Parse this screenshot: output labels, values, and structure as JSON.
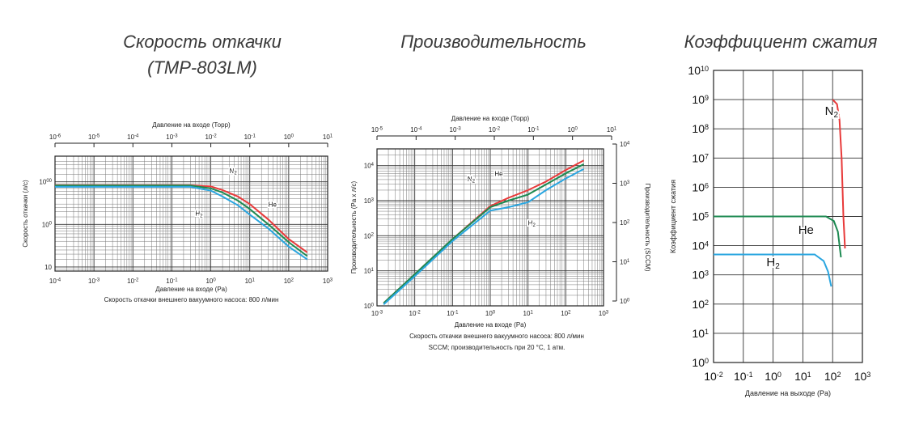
{
  "chart_data": [
    {
      "type": "line",
      "title_lines": [
        "Скорость откачки",
        "(TMP-803LM)"
      ],
      "xlabel": "Давление на входе (Pa)",
      "x2label": "Давление на входе (Торр)",
      "ylabel": "Скорость откачки (л/с)",
      "note": "Скорость откачки внешнего вакуумного насоса: 800 л/мин",
      "xscale": "log",
      "yscale": "log",
      "xlim": [
        0.0001,
        1000
      ],
      "ylim": [
        8,
        4000
      ],
      "x2lim": [
        1e-06,
        10
      ],
      "xticks": [
        "10-4",
        "10-3",
        "10-2",
        "10-1",
        "100",
        "101",
        "102",
        "103"
      ],
      "x2ticks": [
        "10-6",
        "10-5",
        "10-4",
        "10-3",
        "10-2",
        "10-1",
        "100",
        "101"
      ],
      "yticks": [
        {
          "v": 10,
          "t": "10"
        },
        {
          "v": 100,
          "t": "100"
        },
        {
          "v": 1000,
          "t": "1000"
        }
      ],
      "grid": true,
      "series": [
        {
          "name": "N2",
          "color": "#e83a3a",
          "x": [
            0.0001,
            0.3,
            1,
            2,
            5,
            10,
            30,
            100,
            300
          ],
          "y": [
            830,
            830,
            780,
            640,
            450,
            300,
            130,
            45,
            22
          ]
        },
        {
          "name": "He",
          "color": "#1d8a52",
          "x": [
            0.0001,
            0.3,
            1,
            2,
            5,
            10,
            30,
            100,
            300
          ],
          "y": [
            820,
            820,
            700,
            560,
            360,
            230,
            100,
            38,
            18
          ]
        },
        {
          "name": "H2",
          "color": "#2aa6e0",
          "x": [
            0.0001,
            0.3,
            1,
            2,
            5,
            10,
            30,
            100,
            300
          ],
          "y": [
            760,
            760,
            620,
            450,
            280,
            170,
            80,
            30,
            15
          ]
        }
      ],
      "labels": [
        {
          "text": "N2",
          "x": 3,
          "y": 1600
        },
        {
          "text": "He",
          "x": 30,
          "y": 260
        },
        {
          "text": "H2",
          "x": 0.4,
          "y": 160
        }
      ]
    },
    {
      "type": "line",
      "title_lines": [
        "Производительность"
      ],
      "xlabel": "Давление на входе (Pa)",
      "x2label": "Давление на входе (Торр)",
      "ylabel": "Производительность (Pa x л/с)",
      "y2label": "Производительность (SCCM)",
      "notes": [
        "Скорость откачки внешнего вакуумного насоса: 800 л/мин",
        "SCCM; производительность при 20 °C, 1 атм."
      ],
      "xscale": "log",
      "yscale": "log",
      "xlim": [
        0.001,
        1000
      ],
      "ylim": [
        1,
        30000
      ],
      "x2lim": [
        1e-05,
        10
      ],
      "xticks": [
        "10-3",
        "10-2",
        "10-1",
        "100",
        "101",
        "102",
        "103"
      ],
      "x2ticks": [
        "10-5",
        "10-4",
        "10-3",
        "10-2",
        "10-1",
        "100",
        "101"
      ],
      "yticks": [
        "100",
        "101",
        "102",
        "103",
        "104"
      ],
      "y2ticks": [
        "100",
        "101",
        "102",
        "103",
        "104"
      ],
      "grid": true,
      "series": [
        {
          "name": "N2",
          "color": "#e83a3a",
          "x": [
            0.0015,
            0.01,
            0.1,
            1,
            3,
            10,
            30,
            100,
            300
          ],
          "y": [
            1.2,
            8,
            80,
            700,
            1200,
            2000,
            3500,
            7500,
            14000
          ]
        },
        {
          "name": "He",
          "color": "#1d8a52",
          "x": [
            0.0015,
            0.01,
            0.1,
            1,
            3,
            10,
            30,
            100,
            300
          ],
          "y": [
            1.2,
            8,
            80,
            650,
            1000,
            1500,
            2900,
            6000,
            11000
          ]
        },
        {
          "name": "H2",
          "color": "#2aa6e0",
          "x": [
            0.0015,
            0.01,
            0.1,
            1,
            3,
            10,
            30,
            100,
            300
          ],
          "y": [
            1.1,
            7,
            70,
            520,
            650,
            900,
            2000,
            4300,
            8000
          ]
        }
      ],
      "labels": [
        {
          "text": "N2",
          "x": 0.25,
          "y": 3600
        },
        {
          "text": "He",
          "x": 1.3,
          "y": 5000
        },
        {
          "text": "H2",
          "x": 10,
          "y": 200
        }
      ]
    },
    {
      "type": "line",
      "title_lines": [
        "Коэффициент сжатия"
      ],
      "xlabel": "Давление на выходе (Pa)",
      "ylabel": "Коэффициент сжатия",
      "xscale": "log",
      "yscale": "log",
      "xlim": [
        0.01,
        1000
      ],
      "ylim": [
        1,
        10000000000.0
      ],
      "xticks": [
        "10-2",
        "10-1",
        "100",
        "101",
        "102",
        "103"
      ],
      "yticks": [
        "100",
        "101",
        "102",
        "103",
        "104",
        "105",
        "106",
        "107",
        "108",
        "109",
        "1010"
      ],
      "grid": true,
      "series": [
        {
          "name": "N2",
          "color": "#e83a3a",
          "x": [
            100,
            140,
            170,
            200,
            230,
            260
          ],
          "y": [
            1000000000.0,
            700000000.0,
            200000000.0,
            10000000.0,
            100000.0,
            8000.0
          ]
        },
        {
          "name": "He",
          "color": "#1d8a52",
          "x": [
            0.01,
            10,
            60,
            110,
            150,
            190
          ],
          "y": [
            100000.0,
            100000.0,
            100000.0,
            70000.0,
            30000.0,
            4000.0
          ]
        },
        {
          "name": "H2",
          "color": "#2aa6e0",
          "x": [
            0.01,
            5,
            25,
            50,
            70,
            90
          ],
          "y": [
            5000.0,
            5000.0,
            5000.0,
            3000.0,
            1300.0,
            400.0
          ]
        }
      ],
      "labels": [
        {
          "text": "N2",
          "x": 55,
          "y": 300000000.0
        },
        {
          "text": "He",
          "x": 7,
          "y": 25000.0
        },
        {
          "text": "H2",
          "x": 0.6,
          "y": 2000.0
        }
      ]
    }
  ]
}
